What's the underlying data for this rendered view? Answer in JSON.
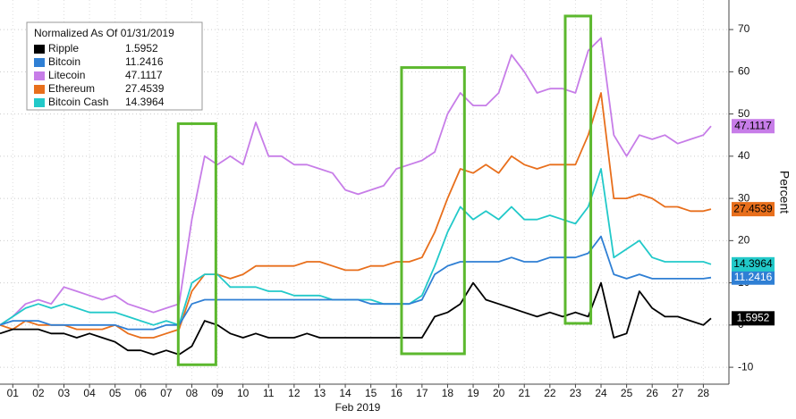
{
  "chart_data": {
    "type": "line",
    "legend_title": "Normalized As Of 01/31/2019",
    "x_label": "Feb 2019",
    "y_label": "Percent",
    "xlim": [
      0.5,
      29
    ],
    "ylim": [
      -14,
      77
    ],
    "xticks": [
      {
        "value": 1,
        "label": "01"
      },
      {
        "value": 2,
        "label": "02"
      },
      {
        "value": 3,
        "label": "03"
      },
      {
        "value": 4,
        "label": "04"
      },
      {
        "value": 5,
        "label": "05"
      },
      {
        "value": 6,
        "label": "06"
      },
      {
        "value": 7,
        "label": "07"
      },
      {
        "value": 8,
        "label": "08"
      },
      {
        "value": 9,
        "label": "09"
      },
      10,
      11,
      12,
      13,
      14,
      15,
      16,
      17,
      18,
      19,
      20,
      21,
      22,
      23,
      24,
      25,
      26,
      27,
      28
    ],
    "yticks": [
      -10,
      0,
      10,
      20,
      30,
      40,
      50,
      60,
      70
    ],
    "grid": true,
    "x": [
      0.5,
      1,
      1.5,
      2,
      2.5,
      3,
      3.5,
      4,
      4.5,
      5,
      5.5,
      6,
      6.5,
      7,
      7.5,
      8,
      8.5,
      9,
      9.5,
      10,
      10.5,
      11,
      11.5,
      12,
      12.5,
      13,
      13.5,
      14,
      14.5,
      15,
      15.5,
      16,
      16.5,
      17,
      17.5,
      18,
      18.5,
      19,
      19.5,
      20,
      20.5,
      21,
      21.5,
      22,
      22.5,
      23,
      23.5,
      24,
      24.5,
      25,
      25.5,
      26,
      26.5,
      27,
      27.5,
      28,
      28.3
    ],
    "series": [
      {
        "name": "Ripple",
        "color": "#000000",
        "text_color": "#ffffff",
        "values": [
          -2,
          -1,
          -1,
          -1,
          -2,
          -2,
          -3,
          -2,
          -3,
          -4,
          -6,
          -6,
          -7,
          -6,
          -7,
          -5,
          1,
          0,
          -2,
          -3,
          -2,
          -3,
          -3,
          -3,
          -2,
          -3,
          -3,
          -3,
          -3,
          -3,
          -3,
          -3,
          -3,
          -3,
          2,
          3,
          5,
          10,
          6,
          5,
          4,
          3,
          2,
          3,
          2,
          3,
          2,
          10,
          -3,
          -2,
          8,
          4,
          2,
          2,
          1,
          0,
          1.5952
        ]
      },
      {
        "name": "Bitcoin",
        "color": "#2f7fd4",
        "text_color": "#ffffff",
        "values": [
          0,
          1,
          1,
          1,
          0,
          0,
          0,
          0,
          0,
          0,
          -1,
          -1,
          -1,
          0,
          0,
          5,
          6,
          6,
          6,
          6,
          6,
          6,
          6,
          6,
          6,
          6,
          6,
          6,
          6,
          5,
          5,
          5,
          5,
          6,
          12,
          14,
          15,
          15,
          15,
          15,
          16,
          15,
          15,
          16,
          16,
          16,
          17,
          21,
          12,
          11,
          12,
          11,
          11,
          11,
          11,
          11,
          11.2416
        ]
      },
      {
        "name": "Litecoin",
        "color": "#c77de8",
        "text_color": "#000000",
        "values": [
          0,
          2,
          5,
          6,
          5,
          9,
          8,
          7,
          6,
          7,
          5,
          4,
          3,
          4,
          5,
          25,
          40,
          38,
          40,
          38,
          48,
          40,
          40,
          38,
          38,
          37,
          36,
          32,
          31,
          32,
          33,
          37,
          38,
          39,
          41,
          50,
          55,
          52,
          52,
          55,
          64,
          60,
          55,
          56,
          56,
          55,
          65,
          68,
          45,
          40,
          45,
          44,
          45,
          43,
          44,
          45,
          47.1117
        ]
      },
      {
        "name": "Ethereum",
        "color": "#e86f1c",
        "text_color": "#000000",
        "values": [
          0,
          -1,
          1,
          0,
          0,
          0,
          -1,
          -1,
          -1,
          0,
          -2,
          -3,
          -3,
          -2,
          -1,
          8,
          12,
          12,
          11,
          12,
          14,
          14,
          14,
          14,
          15,
          15,
          14,
          13,
          13,
          14,
          14,
          15,
          15,
          16,
          22,
          30,
          37,
          36,
          38,
          36,
          40,
          38,
          37,
          38,
          38,
          38,
          45,
          55,
          30,
          30,
          31,
          30,
          28,
          28,
          27,
          27,
          27.4539
        ]
      },
      {
        "name": "Bitcoin Cash",
        "color": "#22c9c9",
        "text_color": "#000000",
        "values": [
          0,
          2,
          4,
          5,
          4,
          5,
          4,
          3,
          3,
          3,
          2,
          1,
          0,
          1,
          0,
          10,
          12,
          12,
          9,
          9,
          9,
          8,
          8,
          7,
          7,
          7,
          6,
          6,
          6,
          6,
          5,
          5,
          5,
          7,
          14,
          22,
          28,
          25,
          27,
          25,
          28,
          25,
          25,
          26,
          25,
          24,
          28,
          37,
          16,
          18,
          20,
          16,
          15,
          15,
          15,
          15,
          14.3964
        ]
      }
    ],
    "highlights": [
      {
        "x": [
          7.47,
          8.94
        ],
        "y": [
          -9.4,
          47.7
        ]
      },
      {
        "x": [
          16.2,
          18.66
        ],
        "y": [
          -6.8,
          61
        ]
      },
      {
        "x": [
          22.6,
          23.6
        ],
        "y": [
          0.4,
          73.2
        ]
      }
    ],
    "highlight_color": "#5cb82e"
  }
}
